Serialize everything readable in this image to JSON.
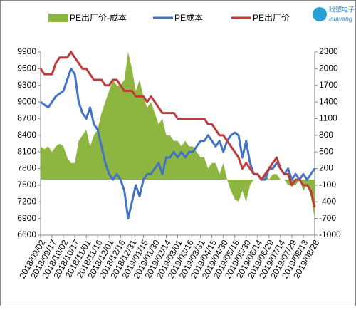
{
  "chart_data": {
    "type": "combo",
    "logo": {
      "name": "找塑电子",
      "brand": "isuwang"
    },
    "categories": [
      "2018/09/02",
      null,
      null,
      "2018/09/17",
      null,
      null,
      "2018/10/02",
      null,
      null,
      "2018/10/17",
      null,
      null,
      "2018/11/01",
      null,
      null,
      "2018/11/16",
      null,
      null,
      "2018/12/01",
      null,
      null,
      "2018/12/16",
      null,
      null,
      "2018/12/31",
      null,
      null,
      "2019/01/15",
      null,
      null,
      "2019/01/30",
      null,
      null,
      "2019/02/14",
      null,
      null,
      "2019/03/01",
      null,
      null,
      "2019/03/16",
      null,
      null,
      "2019/03/31",
      null,
      null,
      "2019/04/15",
      null,
      null,
      "2019/04/30",
      null,
      null,
      "2019/05/15",
      null,
      null,
      "2019/05/30",
      null,
      null,
      "2019/06/14",
      null,
      null,
      "2019/06/29",
      null,
      null,
      "2019/07/14",
      null,
      null,
      "2019/07/29",
      null,
      null,
      "2019/08/13",
      null,
      null,
      "2019/08/28"
    ],
    "ylim": [
      6600,
      9900
    ],
    "yticks": [
      6600,
      6900,
      7200,
      7500,
      7800,
      8100,
      8400,
      8700,
      9000,
      9300,
      9600,
      9900
    ],
    "y2lim": [
      -1000,
      2300
    ],
    "y2ticks": [
      -1000,
      -700,
      -400,
      -100,
      200,
      500,
      800,
      1100,
      1400,
      1700,
      2000,
      2300
    ],
    "series": [
      {
        "name": "PE出厂价-成本",
        "type": "area",
        "axis": "y2",
        "color": "#8db640",
        "values": [
          600,
          550,
          600,
          500,
          600,
          650,
          600,
          400,
          300,
          300,
          700,
          800,
          900,
          600,
          800,
          900,
          1200,
          1400,
          1600,
          1800,
          1700,
          1700,
          1800,
          2300,
          2000,
          1600,
          1800,
          1500,
          1300,
          1400,
          1200,
          1000,
          1100,
          800,
          800,
          700,
          700,
          600,
          700,
          600,
          600,
          500,
          400,
          400,
          200,
          300,
          300,
          100,
          300,
          0,
          -200,
          -350,
          -400,
          -200,
          -400,
          -100,
          0,
          0,
          0,
          100,
          0,
          100,
          100,
          0,
          0,
          -100,
          -100,
          -100,
          0,
          -200,
          -100,
          -300,
          -700
        ]
      },
      {
        "name": "PE成本",
        "type": "line",
        "color": "#4472c4",
        "values": [
          9000,
          8950,
          8900,
          9000,
          9100,
          9150,
          9200,
          9400,
          9600,
          9500,
          9000,
          8800,
          8700,
          8900,
          8600,
          8500,
          8200,
          7900,
          7700,
          7600,
          7700,
          7600,
          7400,
          6900,
          7200,
          7500,
          7300,
          7600,
          7700,
          7700,
          7800,
          7900,
          7700,
          8000,
          8000,
          8100,
          8000,
          8100,
          8000,
          8100,
          8100,
          8200,
          8300,
          8300,
          8400,
          8300,
          8200,
          8300,
          8100,
          8300,
          8400,
          8450,
          8400,
          8000,
          8300,
          7900,
          7700,
          7700,
          7600,
          7600,
          7800,
          7800,
          7900,
          7800,
          7700,
          7800,
          7600,
          7700,
          7600,
          7700,
          7600,
          7700,
          7800
        ]
      },
      {
        "name": "PE出厂价",
        "type": "line",
        "color": "#c0393b",
        "values": [
          9600,
          9500,
          9500,
          9500,
          9700,
          9800,
          9800,
          9800,
          9900,
          9800,
          9700,
          9600,
          9600,
          9500,
          9400,
          9400,
          9400,
          9300,
          9300,
          9400,
          9400,
          9300,
          9200,
          9200,
          9200,
          9100,
          9100,
          9100,
          9000,
          9100,
          9000,
          8900,
          8800,
          8800,
          8800,
          8800,
          8700,
          8700,
          8700,
          8700,
          8700,
          8700,
          8700,
          8700,
          8600,
          8600,
          8500,
          8400,
          8400,
          8300,
          8200,
          8100,
          8000,
          7800,
          7900,
          7800,
          7700,
          7700,
          7600,
          7700,
          7800,
          7900,
          8000,
          7800,
          7700,
          7700,
          7500,
          7600,
          7600,
          7500,
          7500,
          7400,
          7100
        ]
      }
    ]
  }
}
